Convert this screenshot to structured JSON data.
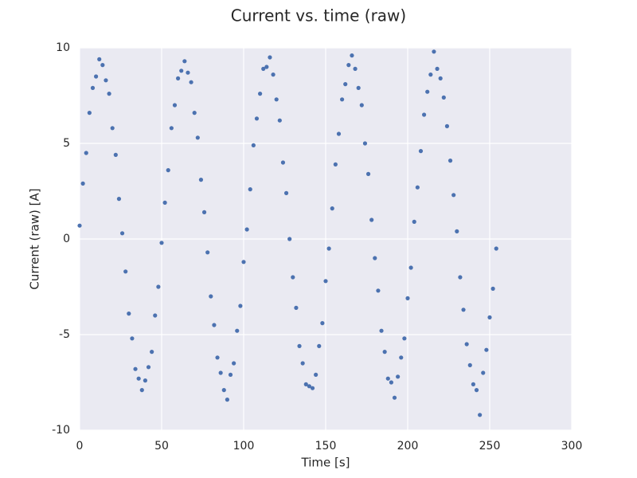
{
  "chart_data": {
    "type": "scatter",
    "title": "Current vs. time (raw)",
    "x_label": "Time [s]",
    "y_label": "Current (raw) [A]",
    "color": "#4c72b0",
    "grid": true,
    "xlim": [
      0,
      300
    ],
    "xticks": [
      0,
      50,
      100,
      150,
      200,
      250,
      300
    ],
    "ylim": [
      -10,
      10
    ],
    "yticks": [
      -10,
      -5,
      0,
      5,
      10
    ],
    "x": [
      0,
      2,
      4,
      6,
      8,
      10,
      12,
      14,
      16,
      18,
      20,
      22,
      24,
      26,
      28,
      30,
      32,
      34,
      36,
      38,
      40,
      42,
      44,
      46,
      48,
      50,
      52,
      54,
      56,
      58,
      60,
      62,
      64,
      66,
      68,
      70,
      72,
      74,
      76,
      78,
      80,
      82,
      84,
      86,
      88,
      90,
      92,
      94,
      96,
      98,
      100,
      102,
      104,
      106,
      108,
      110,
      112,
      114,
      116,
      118,
      120,
      122,
      124,
      126,
      128,
      130,
      132,
      134,
      136,
      138,
      140,
      142,
      144,
      146,
      148,
      150,
      152,
      154,
      156,
      158,
      160,
      162,
      164,
      166,
      168,
      170,
      172,
      174,
      176,
      178,
      180,
      182,
      184,
      186,
      188,
      190,
      192,
      194,
      196,
      198,
      200,
      202,
      204,
      206,
      208,
      210,
      212,
      214,
      216,
      218,
      220,
      222,
      224,
      226,
      228,
      230,
      232,
      234,
      236,
      238,
      240,
      242,
      244,
      246,
      248,
      250,
      252,
      254
    ],
    "y": [
      0.7,
      2.9,
      4.5,
      6.6,
      7.9,
      8.5,
      9.4,
      9.1,
      8.3,
      7.6,
      5.8,
      4.4,
      2.1,
      0.3,
      -1.7,
      -3.9,
      -5.2,
      -6.8,
      -7.3,
      -7.9,
      -7.4,
      -6.7,
      -5.9,
      -4.0,
      -2.5,
      -0.2,
      1.9,
      3.6,
      5.8,
      7.0,
      8.4,
      8.8,
      9.3,
      8.7,
      8.2,
      6.6,
      5.3,
      3.1,
      1.4,
      -0.7,
      -3.0,
      -4.5,
      -6.2,
      -7.0,
      -7.9,
      -8.4,
      -7.1,
      -6.5,
      -4.8,
      -3.5,
      -1.2,
      0.5,
      2.6,
      4.9,
      6.3,
      7.6,
      8.9,
      9.0,
      9.5,
      8.6,
      7.3,
      6.2,
      4.0,
      2.4,
      0.0,
      -2.0,
      -3.6,
      -5.6,
      -6.5,
      -7.6,
      -7.7,
      -7.8,
      -7.1,
      -5.6,
      -4.4,
      -2.2,
      -0.5,
      1.6,
      3.9,
      5.5,
      7.3,
      8.1,
      9.1,
      9.6,
      8.9,
      7.9,
      7.0,
      5.0,
      3.4,
      1.0,
      -1.0,
      -2.7,
      -4.8,
      -5.9,
      -7.3,
      -7.5,
      -8.3,
      -7.2,
      -6.2,
      -5.2,
      -3.1,
      -1.5,
      0.9,
      2.7,
      4.6,
      6.5,
      7.7,
      8.6,
      9.8,
      8.9,
      8.4,
      7.4,
      5.9,
      4.1,
      2.3,
      0.4,
      -2.0,
      -3.7,
      -5.5,
      -6.6,
      -7.6,
      -7.9,
      -9.2,
      -7.0,
      -5.8,
      -4.1,
      -2.6,
      -0.5
    ]
  }
}
